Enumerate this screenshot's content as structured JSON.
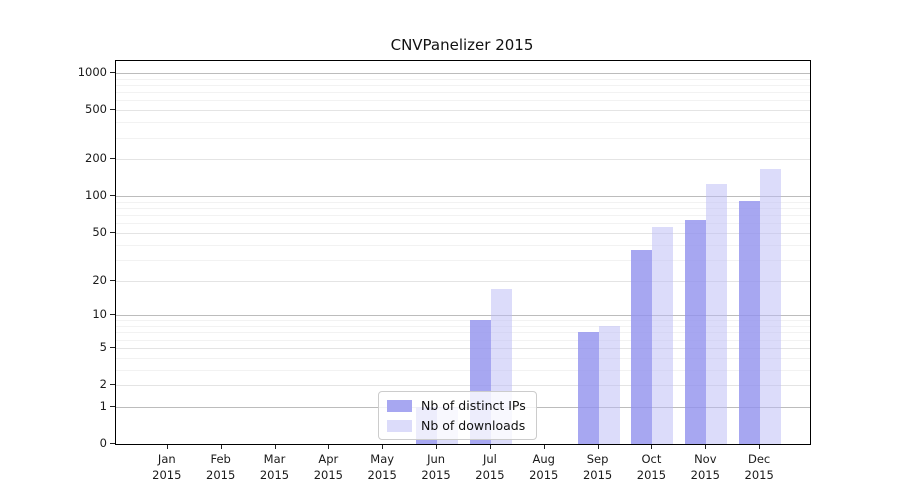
{
  "title": "CNVPanelizer 2015",
  "chart_data": {
    "type": "bar",
    "title": "CNVPanelizer 2015",
    "categories": [
      "Jan 2015",
      "Feb 2015",
      "Mar 2015",
      "Apr 2015",
      "May 2015",
      "Jun 2015",
      "Jul 2015",
      "Aug 2015",
      "Sep 2015",
      "Oct 2015",
      "Nov 2015",
      "Dec 2015"
    ],
    "series": [
      {
        "name": "Nb of distinct IPs",
        "color": "#a7a7f1",
        "fill": "rgba(145,145,238,0.8)",
        "values": [
          0,
          0,
          0,
          0,
          0,
          1,
          9,
          0,
          7,
          36,
          64,
          92
        ]
      },
      {
        "name": "Nb of downloads",
        "color": "#dcdcfa",
        "fill": "rgba(185,185,245,0.5)",
        "values": [
          0,
          0,
          0,
          0,
          0,
          1,
          17,
          0,
          8,
          56,
          125,
          166
        ]
      }
    ],
    "xlabel": "",
    "ylabel": "",
    "yticks": [
      0,
      1,
      2,
      5,
      10,
      20,
      50,
      100,
      200,
      500,
      1000
    ],
    "scale": "log1p",
    "ylim": [
      0,
      1260
    ],
    "grid": true,
    "legend_position": "lower-center"
  }
}
